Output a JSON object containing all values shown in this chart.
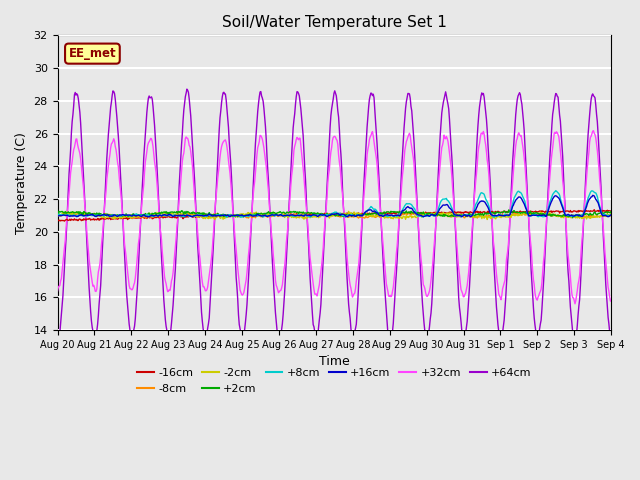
{
  "title": "Soil/Water Temperature Set 1",
  "xlabel": "Time",
  "ylabel": "Temperature (C)",
  "ylim": [
    14,
    32
  ],
  "yticks": [
    14,
    16,
    18,
    20,
    22,
    24,
    26,
    28,
    30,
    32
  ],
  "background_color": "#e8e8e8",
  "plot_bg_color": "#e8e8e8",
  "series_colors": {
    "-16cm": "#cc0000",
    "-8cm": "#ff8c00",
    "-2cm": "#cccc00",
    "+2cm": "#00aa00",
    "+8cm": "#00cccc",
    "+16cm": "#0000cc",
    "+32cm": "#ff44ff",
    "+64cm": "#9900cc"
  },
  "annotation_label": "EE_met",
  "annotation_color": "#8b0000",
  "annotation_bg": "#ffff99",
  "tick_labels": [
    "Aug 20",
    "Aug 21",
    "Aug 22",
    "Aug 23",
    "Aug 24",
    "Aug 25",
    "Aug 26",
    "Aug 27",
    "Aug 28",
    "Aug 29",
    "Aug 30",
    "Aug 31",
    "Sep 1",
    "Sep 2",
    "Sep 3",
    "Sep 4"
  ]
}
